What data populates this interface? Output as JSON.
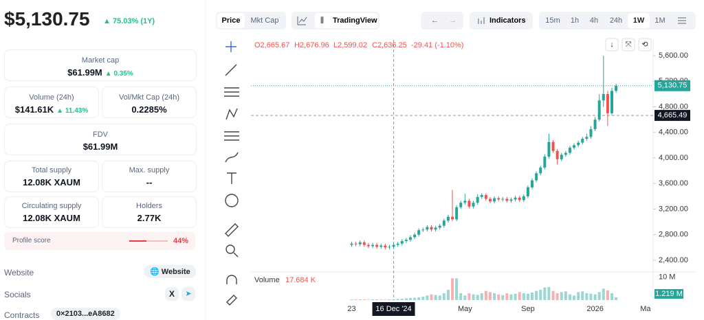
{
  "header": {
    "price": "$5,130.75",
    "change": "75.03% (1Y)"
  },
  "stats": [
    {
      "label": "Market cap",
      "value": "$61.99M",
      "change": "0.35%"
    },
    {
      "label": "Volume (24h)",
      "value": "$141.61K",
      "change": "11.43%"
    },
    {
      "label": "Vol/Mkt Cap (24h)",
      "value": "0.2285%"
    },
    {
      "label": "FDV",
      "value": "$61.99M"
    },
    {
      "label": "Total supply",
      "value": "12.08K XAUM"
    },
    {
      "label": "Max. supply",
      "value": "--"
    },
    {
      "label": "Circulating supply",
      "value": "12.08K XAUM"
    },
    {
      "label": "Holders",
      "value": "2.77K"
    }
  ],
  "profile": {
    "label": "Profile score",
    "value": "44%"
  },
  "links": {
    "website": "Website",
    "website_button": "Website",
    "socials": "Socials",
    "contracts": "Contracts",
    "address": "0×2103...eA8682"
  },
  "toolbar": {
    "tabs": [
      "Price",
      "Mkt Cap"
    ],
    "tradingview": "TradingView",
    "indicators": "Indicators",
    "intervals": [
      "15m",
      "1h",
      "4h",
      "24h",
      "1W",
      "1M"
    ]
  },
  "chart_data": {
    "type": "candlestick",
    "ohlc_header": {
      "o": "O2,665.67",
      "h": "H2,676.96",
      "l": "L2,599.02",
      "c": "C2,636.25",
      "change": "-29.41 (-1.10%)"
    },
    "up_color": "#26a69a",
    "down_color": "#ef5350",
    "open": [
      2640,
      2660,
      2650,
      2680,
      2640,
      2620,
      2640,
      2610,
      2630,
      2600,
      2610,
      2640,
      2660,
      2700,
      2720,
      2760,
      2800,
      2870,
      2880,
      2920,
      2880,
      2910,
      2940,
      3020,
      3080,
      3040,
      3230,
      3300,
      3330,
      3240,
      3300,
      3390,
      3420,
      3360,
      3320,
      3370,
      3350,
      3360,
      3330,
      3350,
      3380,
      3340,
      3400,
      3540,
      3650,
      3760,
      3850,
      4020,
      4250,
      4110,
      3980,
      4050,
      4080,
      4160,
      4200,
      4240,
      4300,
      4330,
      4450,
      4600,
      4900,
      5000,
      4700,
      5050
    ],
    "high": [
      2690,
      2690,
      2710,
      2710,
      2670,
      2670,
      2670,
      2660,
      2660,
      2640,
      2670,
      2690,
      2730,
      2750,
      2790,
      2830,
      2900,
      2910,
      2950,
      2950,
      2940,
      2970,
      3050,
      3110,
      3500,
      3260,
      3330,
      3440,
      3360,
      3330,
      3430,
      3450,
      3450,
      3390,
      3400,
      3400,
      3390,
      3390,
      3380,
      3410,
      3410,
      3430,
      3570,
      3680,
      3790,
      3880,
      4060,
      4380,
      4280,
      4140,
      4080,
      4110,
      4190,
      4230,
      4270,
      4330,
      4380,
      4500,
      4640,
      5000,
      5600,
      5050,
      5100,
      5160
    ],
    "low": [
      2610,
      2620,
      2620,
      2610,
      2590,
      2590,
      2580,
      2580,
      2570,
      2570,
      2580,
      2610,
      2630,
      2670,
      2690,
      2730,
      2770,
      2840,
      2850,
      2850,
      2850,
      2880,
      2910,
      2990,
      3010,
      3010,
      3200,
      3270,
      3210,
      3210,
      3270,
      3360,
      3330,
      3290,
      3290,
      3320,
      3320,
      3300,
      3300,
      3320,
      3310,
      3310,
      3370,
      3510,
      3620,
      3730,
      3820,
      3990,
      4080,
      3900,
      3950,
      4020,
      4050,
      4130,
      4170,
      4210,
      4270,
      4300,
      4420,
      4570,
      4800,
      4500,
      4670,
      5020
    ],
    "close": [
      2660,
      2650,
      2680,
      2640,
      2620,
      2640,
      2610,
      2630,
      2600,
      2610,
      2640,
      2660,
      2700,
      2720,
      2760,
      2800,
      2870,
      2880,
      2920,
      2880,
      2910,
      2940,
      3020,
      3080,
      3040,
      3230,
      3300,
      3330,
      3240,
      3300,
      3390,
      3420,
      3360,
      3320,
      3370,
      3350,
      3360,
      3330,
      3350,
      3380,
      3340,
      3400,
      3540,
      3650,
      3760,
      3850,
      4020,
      4250,
      4110,
      3980,
      4050,
      4080,
      4160,
      4200,
      4240,
      4300,
      4330,
      4450,
      4600,
      4900,
      5000,
      4700,
      5050,
      5130
    ],
    "volume": [
      0.3,
      0.3,
      0.3,
      0.3,
      0.2,
      0.3,
      0.3,
      0.2,
      0.2,
      0.3,
      0.3,
      0.5,
      0.6,
      0.8,
      0.9,
      1,
      1.2,
      1.5,
      2,
      2.5,
      2.2,
      2,
      3,
      4.5,
      9.5,
      9.5,
      3,
      2,
      3,
      2.5,
      2.3,
      3,
      4,
      3.5,
      3,
      2.5,
      2.2,
      3,
      2.5,
      2.8,
      3.5,
      3,
      2.8,
      3.3,
      4,
      4.5,
      5.5,
      5.7,
      4,
      3,
      3.5,
      3.8,
      2.5,
      2,
      3.5,
      3.8,
      3,
      2.8,
      2.5,
      3.5,
      5,
      4.2,
      3,
      1.219
    ],
    "volume_labels_last": "1.219 M",
    "volume_title": "Volume",
    "volume_current": "17.684 K",
    "xlim": [
      -24,
      71.5
    ],
    "xticks": [
      {
        "value": 0,
        "label": "23"
      },
      {
        "value": 27,
        "label": "May"
      },
      {
        "value": 42,
        "label": "Sep"
      },
      {
        "value": 58,
        "label": "2026"
      },
      {
        "value": 70,
        "label": "Ma"
      }
    ],
    "crosshair": {
      "x": 10,
      "x_label": "16 Dec '24",
      "y": 4665.49,
      "y_label": "4,665.49"
    },
    "last_price": {
      "value": 5130.75,
      "label": "5,130.75"
    },
    "ylim": [
      2217,
      5848
    ],
    "yticks": [
      {
        "value": 2400,
        "label": "2,400.00"
      },
      {
        "value": 2800,
        "label": "2,800.00"
      },
      {
        "value": 3200,
        "label": "3,200.00"
      },
      {
        "value": 3600,
        "label": "3,600.00"
      },
      {
        "value": 4000,
        "label": "4,000.00"
      },
      {
        "value": 4400,
        "label": "4,400.00"
      },
      {
        "value": 4800,
        "label": "4,800.00"
      },
      {
        "value": 5200,
        "label": "5,200.00"
      },
      {
        "value": 5600,
        "label": "5,600.00"
      }
    ],
    "vlim": [
      0,
      12.3
    ],
    "vticks": [
      {
        "value": 10,
        "label": "10 M"
      }
    ]
  }
}
